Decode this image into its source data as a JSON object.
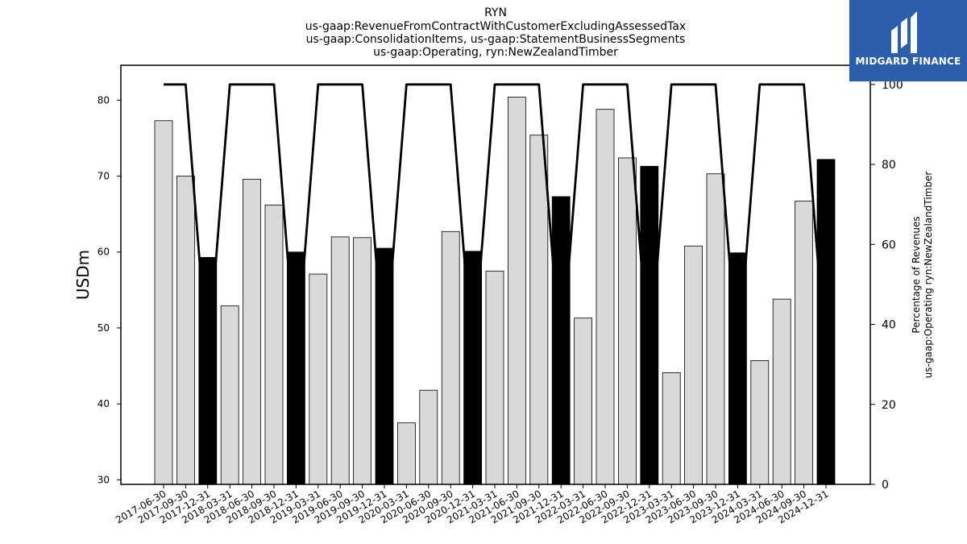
{
  "chart_data": {
    "type": "bar",
    "title_lines": [
      "RYN",
      "us-gaap:RevenueFromContractWithCustomerExcludingAssessedTax",
      "us-gaap:ConsolidationItems, us-gaap:StatementBusinessSegments",
      "us-gaap:Operating, ryn:NewZealandTimber"
    ],
    "ylabel": "USDm",
    "ylabel_right": [
      "Percentage of Revenues",
      "us-gaap:Operating ryn:NewZealandTimber"
    ],
    "ylim": [
      29.4,
      84.6
    ],
    "ylim_right": [
      0,
      104.8
    ],
    "yticks": [
      30,
      40,
      50,
      60,
      70,
      80
    ],
    "yticks_right": [
      0,
      20,
      40,
      60,
      80,
      100
    ],
    "categories": [
      "2017-06-30",
      "2017-09-30",
      "2017-12-31",
      "2018-03-31",
      "2018-06-30",
      "2018-09-30",
      "2018-12-31",
      "2019-03-31",
      "2019-06-30",
      "2019-09-30",
      "2019-12-31",
      "2020-03-31",
      "2020-06-30",
      "2020-09-30",
      "2020-12-31",
      "2021-03-31",
      "2021-06-30",
      "2021-09-30",
      "2021-12-31",
      "2022-03-31",
      "2022-06-30",
      "2022-09-30",
      "2022-12-31",
      "2023-03-31",
      "2023-06-30",
      "2023-09-30",
      "2023-12-31",
      "2024-03-31",
      "2024-06-30",
      "2024-09-30",
      "2024-12-31"
    ],
    "values": [
      77.3,
      70.0,
      59.3,
      52.9,
      69.6,
      66.2,
      60.0,
      57.1,
      62.0,
      61.9,
      60.5,
      37.5,
      41.8,
      62.7,
      60.1,
      57.5,
      80.4,
      75.4,
      67.3,
      51.3,
      78.8,
      72.4,
      71.3,
      44.1,
      60.8,
      70.3,
      59.9,
      45.7,
      53.8,
      66.7,
      72.2
    ],
    "annual": [
      false,
      false,
      true,
      false,
      false,
      false,
      true,
      false,
      false,
      false,
      true,
      false,
      false,
      false,
      true,
      false,
      false,
      false,
      true,
      false,
      false,
      false,
      true,
      false,
      false,
      false,
      true,
      false,
      false,
      false,
      true
    ],
    "percentage_line": [
      100,
      100,
      30,
      100,
      100,
      100,
      30,
      100,
      100,
      100,
      30,
      100,
      100,
      100,
      30,
      100,
      100,
      100,
      30,
      100,
      100,
      100,
      30,
      100,
      100,
      100,
      30,
      100,
      100,
      100,
      30
    ],
    "colors": {
      "quarter_bar": "#d9d9d9",
      "annual_bar": "#000000",
      "line": "#000000"
    }
  },
  "logo": {
    "text": "MIDGARD FINANCE",
    "bg_color": "#2b5fad"
  }
}
